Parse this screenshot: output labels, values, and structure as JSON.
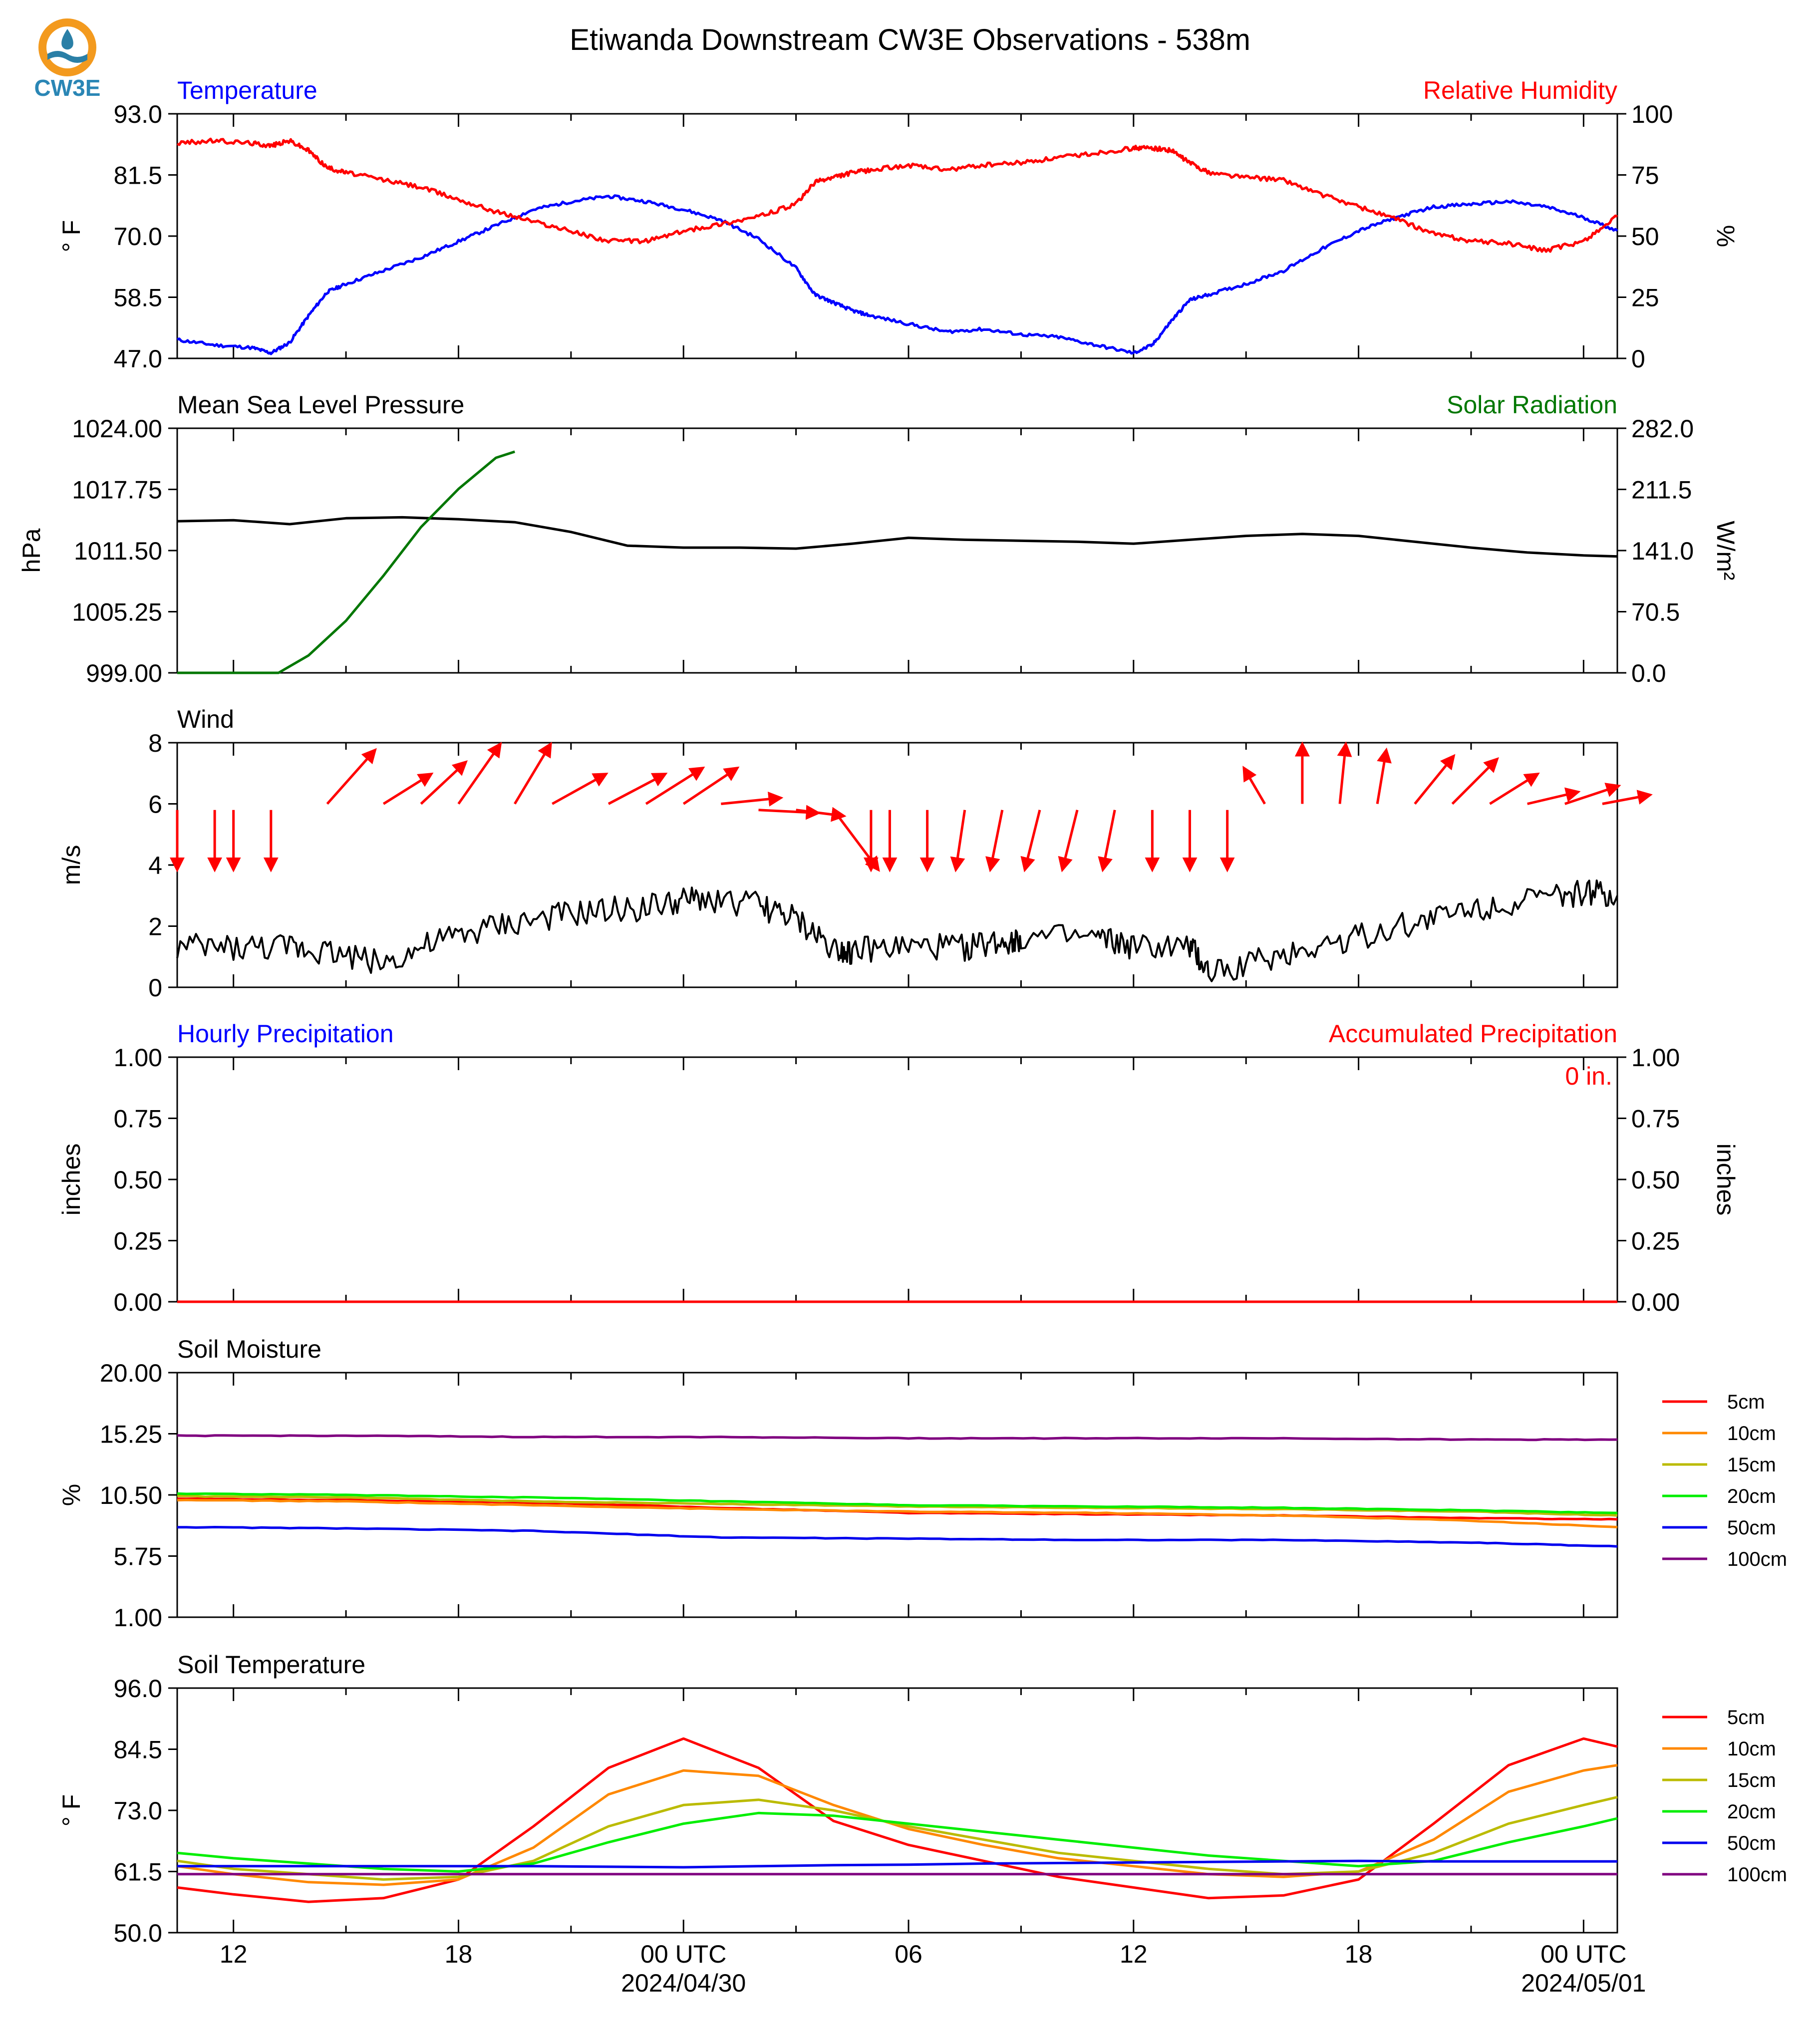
{
  "title": "Etiwanda Downstream CW3E Observations - 538m",
  "logo_text": "CW3E",
  "x_axis": {
    "tick_labels": [
      "12",
      "18",
      "00 UTC",
      "06",
      "12",
      "18",
      "00 UTC"
    ],
    "tick_hours": [
      12,
      18,
      24,
      30,
      36,
      42,
      48
    ],
    "date_labels": [
      {
        "hour": 24,
        "text": "2024/04/30"
      },
      {
        "hour": 48,
        "text": "2024/05/01"
      }
    ]
  },
  "chart_data": [
    {
      "type": "line",
      "title_left": "Temperature",
      "title_right": "Relative Humidity",
      "ylabel_left": "° F",
      "ylabel_right": "%",
      "ylim_left": [
        47.0,
        93.0
      ],
      "ylim_right": [
        0,
        100
      ],
      "yticks_left": [
        "47.0",
        "58.5",
        "70.0",
        "81.5",
        "93.0"
      ],
      "yticks_right": [
        "0",
        "25",
        "50",
        "75",
        "100"
      ],
      "x_hours": [
        10.5,
        11.5,
        12.5,
        13,
        13.5,
        14,
        14.5,
        15,
        16,
        17,
        18,
        19,
        20,
        21,
        22,
        23,
        24,
        25,
        26,
        27,
        27.5,
        28,
        28.5,
        29,
        30,
        31,
        32,
        33,
        34,
        35,
        36,
        36.5,
        37,
        37.5,
        38,
        39,
        40,
        41,
        42,
        43,
        44,
        45,
        46,
        47,
        48,
        48.9
      ],
      "series": [
        {
          "name": "Temperature",
          "axis": "left",
          "color": "#0000ff",
          "values": [
            50.5,
            49.5,
            49.0,
            48.0,
            50.0,
            55.0,
            59.5,
            61.0,
            63.5,
            66.0,
            69.0,
            72.0,
            75.0,
            76.5,
            77.5,
            76.5,
            75.0,
            73.0,
            69.5,
            64.0,
            59.0,
            57.5,
            56.0,
            55.0,
            53.5,
            52.0,
            52.5,
            51.5,
            51.0,
            49.5,
            48.0,
            49.5,
            54.0,
            58.0,
            59.0,
            61.0,
            63.5,
            67.5,
            71.0,
            73.5,
            75.5,
            76.0,
            76.5,
            75.5,
            73.5,
            71.0
          ]
        },
        {
          "name": "Relative Humidity",
          "axis": "right",
          "color": "#ff0000",
          "values": [
            88,
            89,
            88,
            87,
            89,
            85,
            78,
            76,
            73,
            70,
            65,
            60,
            56,
            52,
            48,
            48,
            52,
            55,
            58,
            63,
            72,
            74,
            76,
            77,
            79,
            77,
            79,
            80,
            82,
            84,
            86,
            86,
            85,
            80,
            76,
            74,
            73,
            67,
            62,
            57,
            51,
            48,
            47,
            44,
            48,
            58
          ]
        }
      ]
    },
    {
      "type": "line",
      "title_left": "Mean Sea Level Pressure",
      "title_right": "Solar Radiation",
      "ylabel_left": "hPa",
      "ylabel_right": "W/m²",
      "ylim_left": [
        999.0,
        1024.0
      ],
      "ylim_right": [
        0.0,
        282.0
      ],
      "yticks_left": [
        "999.00",
        "1005.25",
        "1011.50",
        "1017.75",
        "1024.00"
      ],
      "yticks_right": [
        "0.0",
        "70.5",
        "141.0",
        "211.5",
        "282.0"
      ],
      "series": [
        {
          "name": "Mean Sea Level Pressure",
          "axis": "left",
          "color": "#000000",
          "x_hours": [
            10.5,
            12,
            13.5,
            15,
            16.5,
            18,
            19.5,
            21,
            22.5,
            24,
            25.5,
            27,
            28.5,
            30,
            31.5,
            33,
            34.5,
            36,
            37.5,
            39,
            40.5,
            42,
            43.5,
            45,
            46.5,
            48,
            48.9
          ],
          "values": [
            1014.5,
            1014.6,
            1014.2,
            1014.8,
            1014.9,
            1014.7,
            1014.4,
            1013.4,
            1012.0,
            1011.8,
            1011.8,
            1011.7,
            1012.2,
            1012.8,
            1012.6,
            1012.5,
            1012.4,
            1012.2,
            1012.6,
            1013.0,
            1013.2,
            1013.0,
            1012.4,
            1011.8,
            1011.3,
            1011.0,
            1010.9
          ]
        },
        {
          "name": "Solar Radiation",
          "axis": "right",
          "color": "#007700",
          "x_hours": [
            10.5,
            11.5,
            12.5,
            13.2,
            14,
            15,
            16,
            17,
            18,
            19,
            19.5
          ],
          "values": [
            0,
            0,
            0,
            0,
            20,
            60,
            112,
            168,
            212,
            248,
            255
          ]
        }
      ]
    },
    {
      "type": "line",
      "title_left": "Wind",
      "ylabel_left": "m/s",
      "ylim_left": [
        0,
        8
      ],
      "yticks_left": [
        "0",
        "2",
        "4",
        "6",
        "8"
      ],
      "series": [
        {
          "name": "Wind",
          "axis": "left",
          "color": "#000000",
          "x_hours": [
            10.5,
            12,
            13.5,
            14.5,
            16,
            17.5,
            19,
            20.5,
            22,
            23.5,
            24.5,
            26,
            27,
            28,
            28.5,
            30,
            31.5,
            32.5,
            33,
            35,
            36,
            37.5,
            38,
            39.5,
            41,
            42.5,
            44,
            45.5,
            47,
            48,
            48.9
          ],
          "values": [
            1.3,
            1.3,
            1.3,
            1.2,
            0.8,
            1.5,
            2.0,
            2.3,
            2.5,
            2.7,
            2.9,
            2.7,
            2.2,
            1.3,
            1.2,
            1.3,
            1.3,
            1.5,
            1.6,
            1.6,
            1.3,
            1.3,
            0.5,
            0.9,
            1.4,
            1.8,
            2.3,
            2.7,
            2.9,
            3.1,
            3.0
          ]
        }
      ],
      "vectors": {
        "color": "#ff0000",
        "x_hours": [
          10.5,
          11.5,
          12.0,
          13.0,
          14.5,
          16.0,
          17.0,
          18.0,
          19.5,
          20.5,
          22.0,
          23.0,
          24.0,
          25.0,
          26.0,
          27.0,
          28.0,
          29.0,
          29.5,
          30.5,
          31.5,
          32.5,
          33.5,
          34.5,
          35.5,
          36.5,
          37.5,
          38.5,
          39.5,
          40.5,
          41.5,
          42.5,
          43.5,
          44.5,
          45.5,
          46.5,
          47.5,
          48.5
        ],
        "u": [
          0,
          0,
          0,
          0,
          1.6,
          1.6,
          1.5,
          1.4,
          1.2,
          1.8,
          1.9,
          1.9,
          1.8,
          2.0,
          2.0,
          1.6,
          1.5,
          0,
          0,
          0,
          -0.3,
          -0.4,
          -0.5,
          -0.5,
          -0.4,
          0,
          0,
          0,
          -0.7,
          0,
          0.2,
          0.3,
          1.3,
          1.5,
          1.6,
          1.7,
          1.8,
          1.6
        ],
        "v": [
          -2.0,
          -2.0,
          -2.0,
          -2.0,
          1.8,
          1.0,
          1.4,
          2.0,
          2.0,
          1.0,
          1.0,
          1.2,
          1.2,
          0.2,
          -0.1,
          -0.2,
          -2.0,
          -2.0,
          -2.0,
          -2.0,
          -2.0,
          -2.0,
          -2.0,
          -2.0,
          -2.0,
          -2.0,
          -2.0,
          -2.0,
          1.2,
          2.0,
          2.0,
          1.8,
          1.6,
          1.5,
          1.0,
          0.4,
          0.6,
          0.3
        ]
      }
    },
    {
      "type": "line",
      "title_left": "Hourly Precipitation",
      "title_right": "Accumulated Precipitation",
      "ylabel_left": "inches",
      "ylabel_right": "inches",
      "ylim_left": [
        0.0,
        1.0
      ],
      "ylim_right": [
        0.0,
        1.0
      ],
      "yticks_left": [
        "0.00",
        "0.25",
        "0.50",
        "0.75",
        "1.00"
      ],
      "yticks_right": [
        "0.00",
        "0.25",
        "0.50",
        "0.75",
        "1.00"
      ],
      "annotation": "0 in.",
      "x_hours": [
        10.5,
        48.9
      ],
      "series": [
        {
          "name": "Hourly Precipitation",
          "axis": "left",
          "color": "#0000ff",
          "values": [
            0,
            0
          ]
        },
        {
          "name": "Accumulated Precipitation",
          "axis": "right",
          "color": "#ff0000",
          "values": [
            0,
            0
          ]
        }
      ]
    },
    {
      "type": "line",
      "title_left": "Soil Moisture",
      "ylabel_left": "%",
      "ylim_left": [
        1.0,
        20.0
      ],
      "yticks_left": [
        "1.00",
        "5.75",
        "10.50",
        "15.25",
        "20.00"
      ],
      "x_hours": [
        10.5,
        15,
        20,
        25,
        30,
        35,
        40,
        45,
        48.9
      ],
      "legend": [
        "5cm",
        "10cm",
        "15cm",
        "20cm",
        "50cm",
        "100cm"
      ],
      "series": [
        {
          "name": "5cm",
          "color": "#ff0000",
          "values": [
            10.2,
            10.1,
            9.9,
            9.5,
            9.1,
            9.0,
            8.9,
            8.7,
            8.6
          ]
        },
        {
          "name": "10cm",
          "color": "#ff8800",
          "values": [
            10.1,
            10.0,
            9.7,
            9.4,
            9.2,
            9.1,
            8.9,
            8.5,
            8.0
          ]
        },
        {
          "name": "15cm",
          "color": "#bbbb00",
          "values": [
            10.4,
            10.3,
            10.0,
            9.8,
            9.6,
            9.5,
            9.4,
            9.2,
            8.9
          ]
        },
        {
          "name": "20cm",
          "color": "#00ee00",
          "values": [
            10.6,
            10.5,
            10.3,
            10.0,
            9.7,
            9.6,
            9.5,
            9.3,
            9.1
          ]
        },
        {
          "name": "50cm",
          "color": "#0000ee",
          "values": [
            8.0,
            7.9,
            7.7,
            7.2,
            7.1,
            7.0,
            7.0,
            6.8,
            6.5
          ]
        },
        {
          "name": "100cm",
          "color": "#800080",
          "values": [
            15.1,
            15.1,
            15.0,
            15.0,
            14.9,
            14.9,
            14.9,
            14.8,
            14.8
          ]
        }
      ]
    },
    {
      "type": "line",
      "title_left": "Soil Temperature",
      "ylabel_left": "° F",
      "ylim_left": [
        50.0,
        96.0
      ],
      "yticks_left": [
        "50.0",
        "61.5",
        "73.0",
        "84.5",
        "96.0"
      ],
      "x_hours": [
        10.5,
        12,
        14,
        16,
        18,
        20,
        22,
        24,
        26,
        28,
        30,
        32,
        34,
        36,
        38,
        40,
        42,
        44,
        46,
        48,
        48.9
      ],
      "legend": [
        "5cm",
        "10cm",
        "15cm",
        "20cm",
        "50cm",
        "100cm"
      ],
      "series": [
        {
          "name": "5cm",
          "color": "#ff0000",
          "values": [
            58.5,
            57.2,
            55.8,
            56.5,
            60.0,
            70.0,
            81.0,
            86.5,
            81.0,
            71.0,
            66.5,
            63.5,
            60.5,
            58.5,
            56.5,
            57.0,
            60.0,
            70.5,
            81.5,
            86.5,
            85.0
          ]
        },
        {
          "name": "10cm",
          "color": "#ff8800",
          "values": [
            62.5,
            61.0,
            59.5,
            59.0,
            60.0,
            66.0,
            76.0,
            80.5,
            79.5,
            74.0,
            69.5,
            66.5,
            64.0,
            62.5,
            61.0,
            60.5,
            61.5,
            67.5,
            76.5,
            80.5,
            81.5
          ]
        },
        {
          "name": "15cm",
          "color": "#bbbb00",
          "values": [
            63.5,
            62.0,
            61.0,
            60.0,
            60.5,
            63.5,
            70.0,
            74.0,
            75.0,
            73.0,
            70.0,
            67.5,
            65.0,
            63.5,
            62.0,
            61.0,
            61.5,
            65.0,
            70.5,
            74.0,
            75.5
          ]
        },
        {
          "name": "20cm",
          "color": "#00ee00",
          "values": [
            65.0,
            64.0,
            63.0,
            62.0,
            61.5,
            63.0,
            67.0,
            70.5,
            72.5,
            72.0,
            70.5,
            69.0,
            67.5,
            66.0,
            64.5,
            63.5,
            62.5,
            63.5,
            67.0,
            70.0,
            71.5
          ]
        },
        {
          "name": "50cm",
          "color": "#0000ee",
          "values": [
            62.5,
            62.5,
            62.5,
            62.5,
            62.5,
            62.5,
            62.4,
            62.3,
            62.5,
            62.7,
            62.8,
            63.0,
            63.1,
            63.2,
            63.3,
            63.4,
            63.5,
            63.4,
            63.4,
            63.4,
            63.4
          ]
        },
        {
          "name": "100cm",
          "color": "#800080",
          "values": [
            61.0,
            61.0,
            61.0,
            61.0,
            61.0,
            61.0,
            61.0,
            61.0,
            61.0,
            61.0,
            61.0,
            61.0,
            61.0,
            61.0,
            61.0,
            61.0,
            61.0,
            61.0,
            61.0,
            61.0,
            61.0
          ]
        }
      ]
    }
  ]
}
